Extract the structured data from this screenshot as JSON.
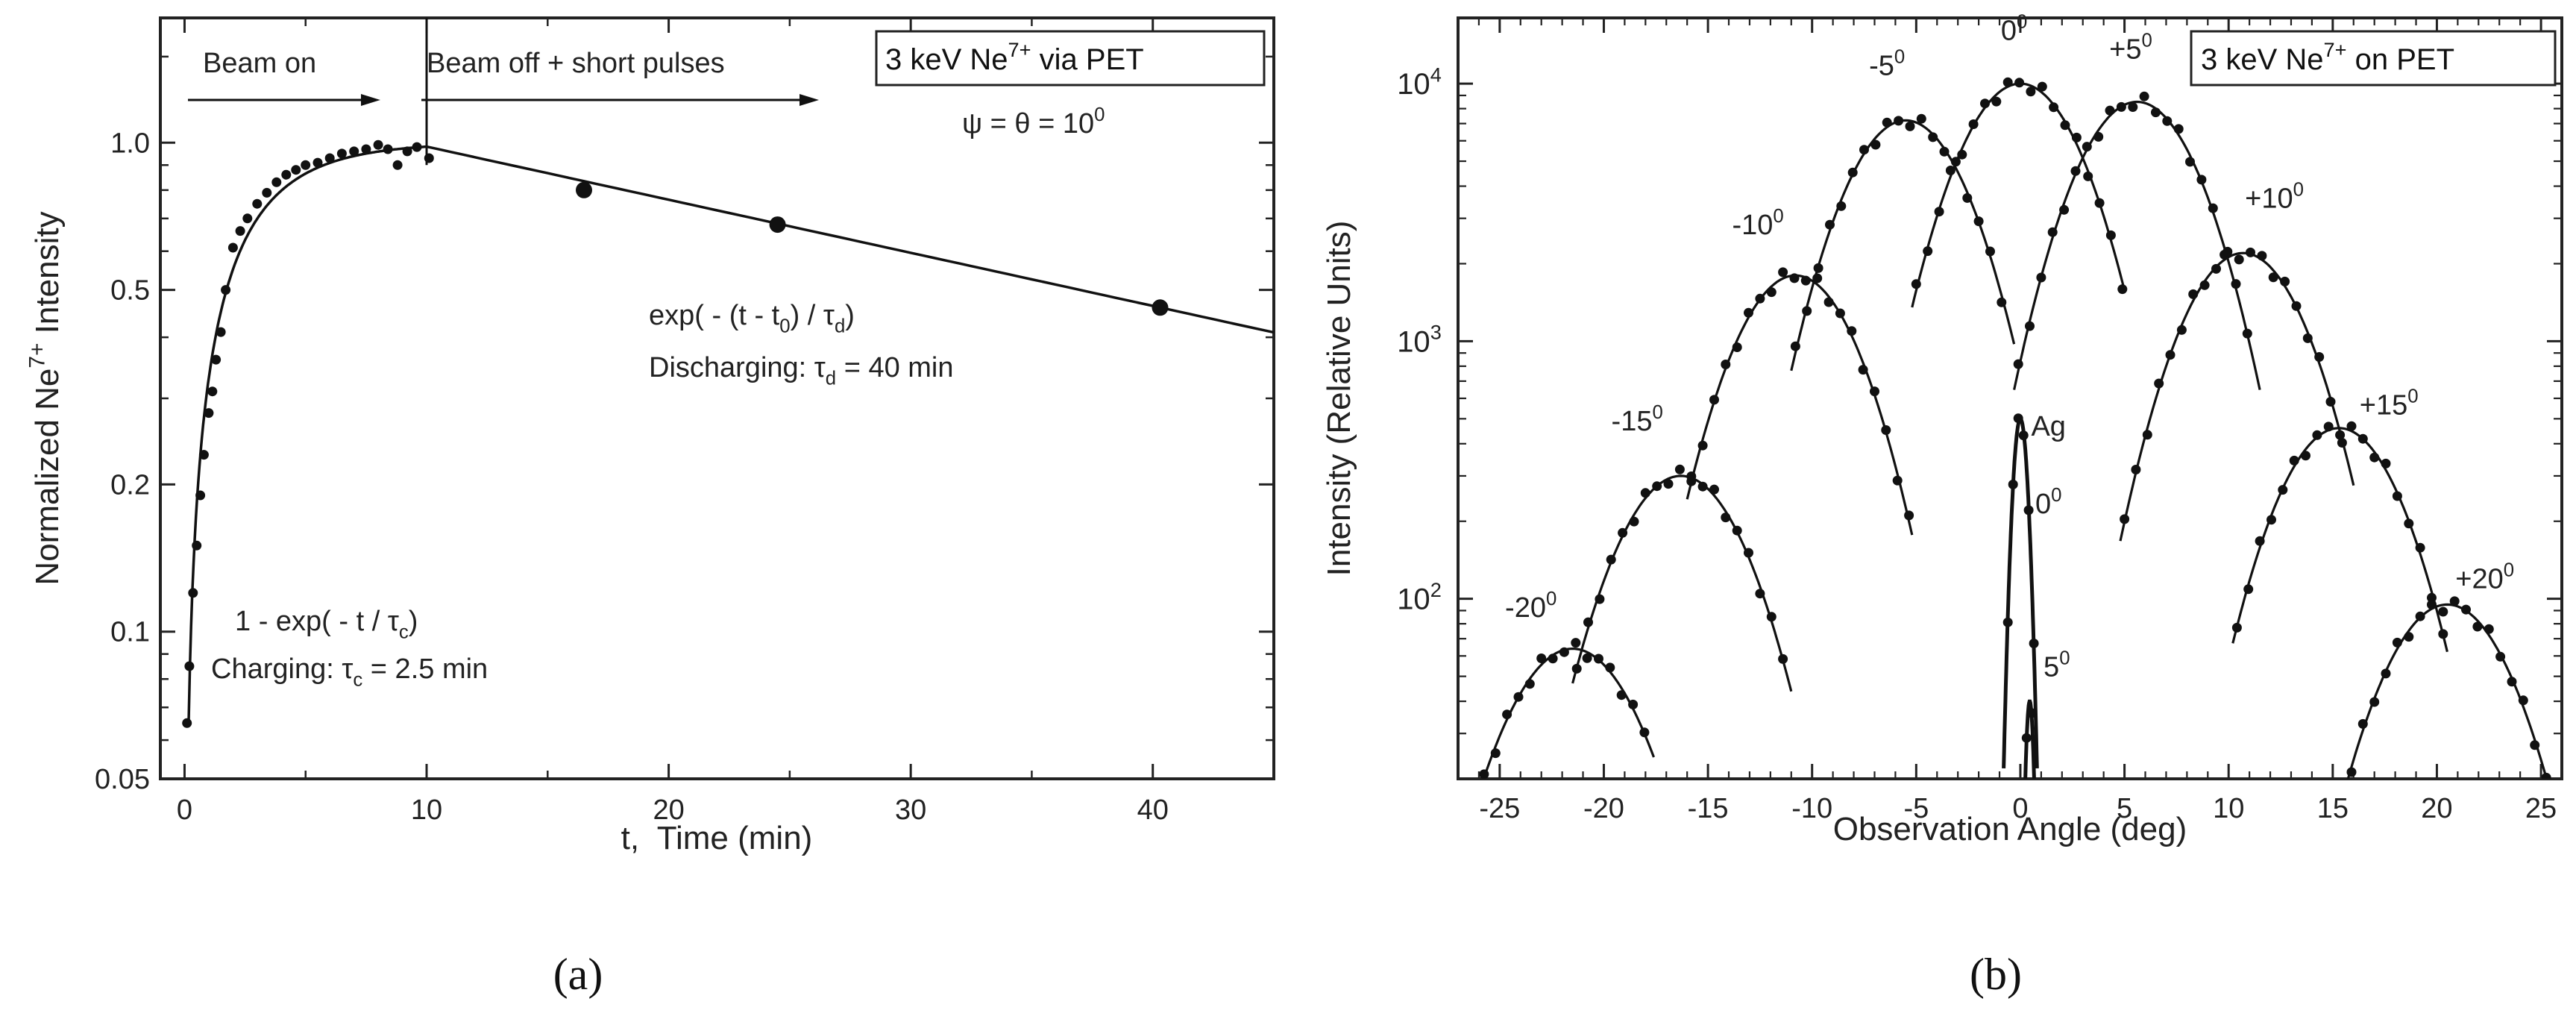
{
  "chart_data": [
    {
      "type": "scatter",
      "panel_label": "(a)",
      "xlabel": "t,  Time (min)",
      "ylabel": "Normalized Ne7+ Intensity",
      "ylabel_parts": {
        "base": "Normalized Ne",
        "sup": "7+",
        "rest": " Intensity"
      },
      "xlim": [
        -1,
        45
      ],
      "ylim": [
        0.05,
        1.8
      ],
      "yscale": "log",
      "xticks": [
        0,
        10,
        20,
        30,
        40
      ],
      "xtick_labels": [
        "0",
        "10",
        "20",
        "30",
        "40"
      ],
      "yticks": [
        0.05,
        0.1,
        0.2,
        0.5,
        1.0
      ],
      "ytick_labels": [
        "0.05",
        "0.1",
        "0.2",
        "0.5",
        "1.0"
      ],
      "legend_box": {
        "parts": [
          {
            "t": "3 keV Ne",
            "k": "n"
          },
          {
            "t": "7+",
            "k": "sup"
          },
          {
            "t": " via PET",
            "k": "n"
          }
        ],
        "position": "top-right"
      },
      "annotations": [
        {
          "id": "beam-on",
          "text": "Beam on"
        },
        {
          "id": "beam-off",
          "text": "Beam off + short pulses"
        },
        {
          "id": "psi-theta",
          "parts": [
            {
              "t": "ψ = θ = 10",
              "k": "n"
            },
            {
              "t": "0",
              "k": "sup"
            }
          ]
        },
        {
          "id": "exp-decay",
          "parts": [
            {
              "t": "exp( - (t - t",
              "k": "n"
            },
            {
              "t": "0",
              "k": "sub"
            },
            {
              "t": ") / τ",
              "k": "n"
            },
            {
              "t": "d",
              "k": "sub"
            },
            {
              "t": ")",
              "k": "n"
            }
          ]
        },
        {
          "id": "discharging",
          "parts": [
            {
              "t": "Discharging: τ",
              "k": "n"
            },
            {
              "t": "d",
              "k": "sub"
            },
            {
              "t": " = 40 min",
              "k": "n"
            }
          ]
        },
        {
          "id": "exp-rise",
          "parts": [
            {
              "t": "1 - exp( - t / τ",
              "k": "n"
            },
            {
              "t": "c",
              "k": "sub"
            },
            {
              "t": ")",
              "k": "n"
            }
          ]
        },
        {
          "id": "charging",
          "parts": [
            {
              "t": "Charging: τ",
              "k": "n"
            },
            {
              "t": "c",
              "k": "sub"
            },
            {
              "t": " = 2.5 min",
              "k": "n"
            }
          ]
        }
      ],
      "beam_off_time": 10,
      "series": [
        {
          "name": "charging data",
          "marker": "small-dot",
          "x": [
            0.1,
            0.2,
            0.35,
            0.5,
            0.65,
            0.8,
            1.0,
            1.15,
            1.3,
            1.5,
            1.7,
            2.0,
            2.3,
            2.6,
            3.0,
            3.4,
            3.8,
            4.2,
            4.6,
            5.0,
            5.5,
            6.0,
            6.5,
            7.0,
            7.5,
            8.0,
            8.4,
            8.8,
            9.2,
            9.6,
            10.1
          ],
          "y": [
            0.065,
            0.085,
            0.12,
            0.15,
            0.19,
            0.23,
            0.28,
            0.31,
            0.36,
            0.41,
            0.5,
            0.61,
            0.66,
            0.7,
            0.75,
            0.79,
            0.83,
            0.86,
            0.88,
            0.9,
            0.91,
            0.93,
            0.95,
            0.96,
            0.97,
            0.99,
            0.97,
            0.9,
            0.96,
            0.98,
            0.93
          ]
        },
        {
          "name": "discharging data",
          "marker": "large-dot",
          "x": [
            16.5,
            24.5,
            40.3
          ],
          "y": [
            0.8,
            0.68,
            0.46
          ]
        },
        {
          "name": "charging fit",
          "function": "1 - exp(-t / 2.5)",
          "tau_c": 2.5
        },
        {
          "name": "discharging fit",
          "function": "exp(-(t - t0) / 40)",
          "t0": 10,
          "tau_d": 40
        }
      ]
    },
    {
      "type": "scatter",
      "panel_label": "(b)",
      "xlabel": "Observation Angle (deg)",
      "ylabel": "Intensity (Relative Units)",
      "xlim": [
        -27,
        26
      ],
      "ylim": [
        20,
        18000
      ],
      "yscale": "log",
      "xticks": [
        -25,
        -20,
        -15,
        -10,
        -5,
        0,
        5,
        10,
        15,
        20,
        25
      ],
      "xtick_labels": [
        "-25",
        "-20",
        "-15",
        "-10",
        "-5",
        "0",
        "5",
        "10",
        "15",
        "20",
        "25"
      ],
      "yticks": [
        100,
        1000,
        10000
      ],
      "ytick_labels": [
        {
          "base": "10",
          "exp": "2"
        },
        {
          "base": "10",
          "exp": "3"
        },
        {
          "base": "10",
          "exp": "4"
        }
      ],
      "legend_box": {
        "parts": [
          {
            "t": "3 keV Ne",
            "k": "n"
          },
          {
            "t": "7+",
            "k": "sup"
          },
          {
            "t": " on PET",
            "k": "n"
          }
        ],
        "position": "top-right"
      },
      "series": [
        {
          "name": "-20°",
          "label": "-20",
          "sup": "0",
          "center": -21.5,
          "peak": 64,
          "width": 2.8,
          "range": [
            -26.5,
            -17.6
          ]
        },
        {
          "name": "-15°",
          "label": "-15",
          "sup": "0",
          "center": -16.3,
          "peak": 300,
          "width": 2.7,
          "range": [
            -21.5,
            -11.0
          ]
        },
        {
          "name": "-10°",
          "label": "-10",
          "sup": "0",
          "center": -10.8,
          "peak": 1800,
          "width": 2.6,
          "range": [
            -16.0,
            -5.2
          ]
        },
        {
          "name": "-5°",
          "label": "-5",
          "sup": "0",
          "center": -5.5,
          "peak": 7200,
          "width": 2.6,
          "range": [
            -11.0,
            -0.3
          ]
        },
        {
          "name": "0°",
          "label": "0",
          "sup": "0",
          "center": 0.0,
          "peak": 10000,
          "width": 2.6,
          "range": [
            -5.2,
            5.0
          ]
        },
        {
          "name": "+5°",
          "label": "+5",
          "sup": "0",
          "center": 5.6,
          "peak": 8500,
          "width": 2.6,
          "range": [
            -0.3,
            11.5
          ]
        },
        {
          "name": "+10°",
          "label": "+10",
          "sup": "0",
          "center": 10.7,
          "peak": 2200,
          "width": 2.6,
          "range": [
            4.8,
            16.0
          ]
        },
        {
          "name": "+15°",
          "label": "+15",
          "sup": "0",
          "center": 15.3,
          "peak": 460,
          "width": 2.6,
          "range": [
            10.2,
            20.5
          ]
        },
        {
          "name": "+20°",
          "label": "+20",
          "sup": "0",
          "center": 20.5,
          "peak": 95,
          "width": 2.7,
          "range": [
            15.7,
            25.8
          ]
        },
        {
          "name": "Ag 0°",
          "label": "Ag",
          "label2": "0",
          "sup2": "0",
          "center": 0.0,
          "peak": 500,
          "width": 0.32,
          "range": [
            -0.8,
            0.8
          ]
        },
        {
          "name": "Ag 5°",
          "label": "",
          "label2": "5",
          "sup2": "0",
          "center": 0.45,
          "peak": 40,
          "width": 0.18,
          "range": [
            0.1,
            0.8
          ]
        }
      ]
    }
  ]
}
